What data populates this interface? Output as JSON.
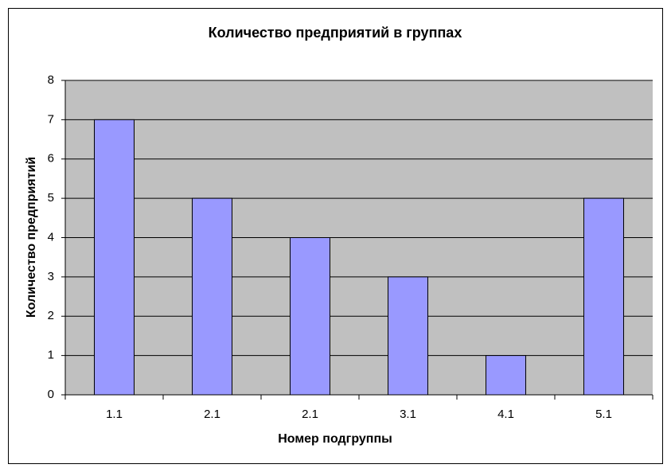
{
  "chart_data": {
    "type": "bar",
    "title": "Количество предприятий в группах",
    "x_label": "Номер подгруппы",
    "y_label": "Количество предприятий",
    "categories": [
      "1.1",
      "2.1",
      "2.1",
      "3.1",
      "4.1",
      "5.1"
    ],
    "values": [
      7,
      5,
      4,
      3,
      1,
      5
    ],
    "color": "#9999ff",
    "ylim": [
      0,
      8
    ],
    "yticks": [
      0,
      1,
      2,
      3,
      4,
      5,
      6,
      7,
      8
    ],
    "grid": true
  }
}
